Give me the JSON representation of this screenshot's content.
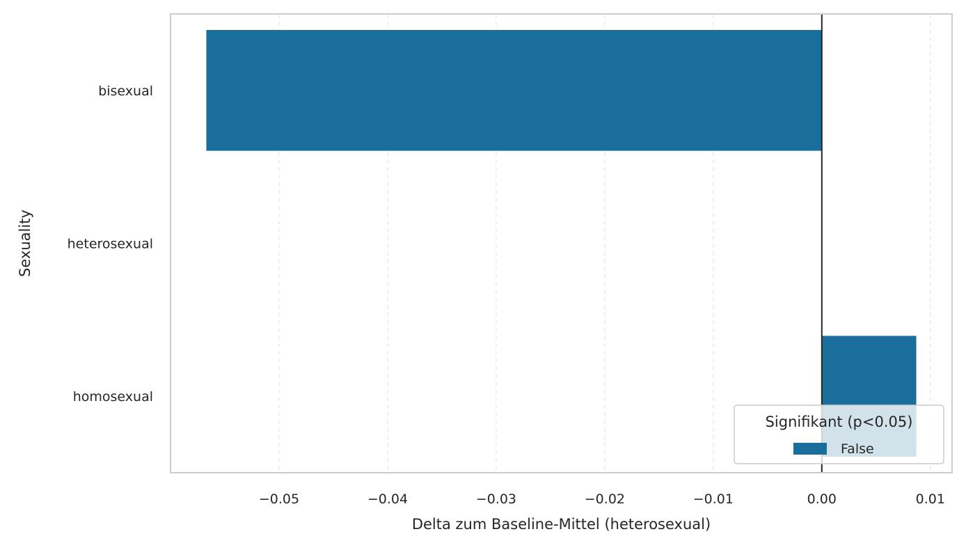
{
  "chart_data": {
    "type": "bar",
    "orientation": "horizontal",
    "title": "",
    "xlabel": "Delta zum Baseline-Mittel (heterosexual)",
    "ylabel": "Sexuality",
    "categories": [
      "bisexual",
      "heterosexual",
      "homosexual"
    ],
    "series": [
      {
        "name": "False",
        "values": [
          -0.0567,
          0.0,
          0.0087
        ],
        "color": "#1a6e9c"
      }
    ],
    "xlim": [
      -0.06,
      0.012
    ],
    "xticks": [
      -0.05,
      -0.04,
      -0.03,
      -0.02,
      -0.01,
      0.0,
      0.01
    ],
    "xtick_labels": [
      "−0.05",
      "−0.04",
      "−0.03",
      "−0.02",
      "−0.01",
      "0.00",
      "0.01"
    ],
    "grid": {
      "x": true,
      "y": false,
      "style": "dashed"
    },
    "reference_line_x": 0.0,
    "legend": {
      "title": "Signifikant (p<0.05)",
      "placement": "lower-right",
      "entries": [
        {
          "label": "False",
          "color": "#1a6e9c"
        }
      ]
    }
  }
}
